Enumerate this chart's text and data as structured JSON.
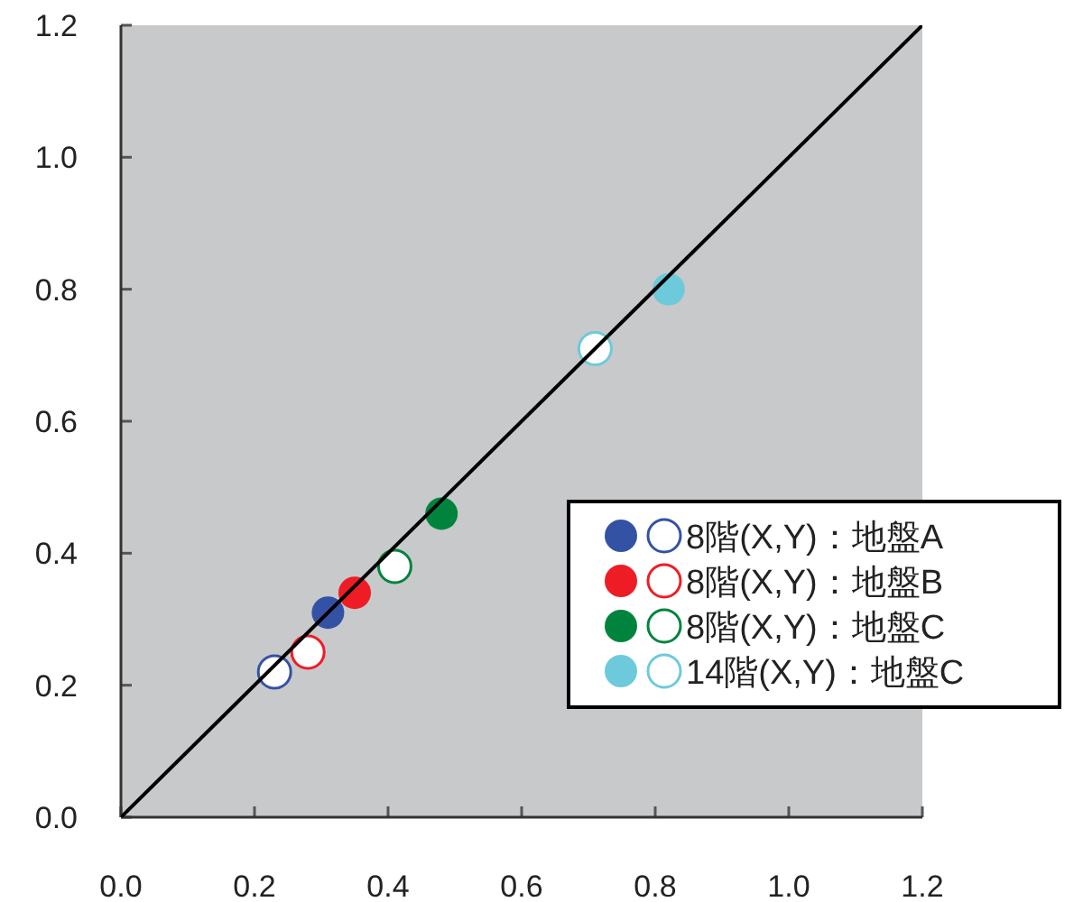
{
  "chart_data": {
    "type": "scatter",
    "xlim": [
      0,
      1.2
    ],
    "ylim": [
      0,
      1.2
    ],
    "xticks": [
      {
        "value": 0,
        "label": "0.0"
      },
      0.2,
      0.4,
      0.6,
      0.8,
      {
        "value": 1,
        "label": "1.0"
      },
      1.2
    ],
    "yticks": [
      {
        "value": 0,
        "label": "0.0"
      },
      0.2,
      0.4,
      0.6,
      0.8,
      {
        "value": 1,
        "label": "1.0"
      },
      1.2
    ],
    "grid": false,
    "legend": "bottom right",
    "series": [
      {
        "name": "8階(X,Y)：地盤A",
        "color": "#3452a4",
        "marker": "circle",
        "x": [
          0.31,
          0.23
        ],
        "values": [
          0.31,
          0.22
        ]
      },
      {
        "name": "8階(X,Y)：地盤B",
        "color": "#ee1c25",
        "marker": "circle",
        "x": [
          0.35,
          0.28
        ],
        "values": [
          0.34,
          0.25
        ]
      },
      {
        "name": "8階(X,Y)：地盤C",
        "color": "#00843d",
        "marker": "circle",
        "x": [
          0.48,
          0.41
        ],
        "values": [
          0.46,
          0.38
        ]
      },
      {
        "name": "14階(X,Y)：地盤C",
        "color": "#6dcadb",
        "marker": "circle",
        "x": [
          0.82,
          0.71
        ],
        "values": [
          0.8,
          0.71
        ]
      },
      {
        "type": "line",
        "color": "#000000",
        "marker": "none",
        "x": [
          0,
          1.2
        ],
        "values": [
          0,
          1.2
        ]
      }
    ]
  }
}
